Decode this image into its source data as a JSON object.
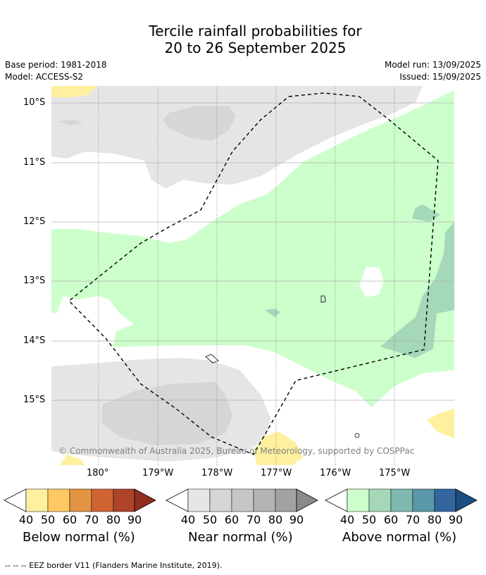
{
  "title_line1": "Tercile rainfall probabilities for",
  "title_line2": "20 to 26 September 2025",
  "base_period": "Base period: 1981-2018",
  "model": "Model: ACCESS-S2",
  "model_run": "Model run: 13/09/2025",
  "issued": "Issued: 15/09/2025",
  "lat_labels": [
    "10°S",
    "11°S",
    "12°S",
    "13°S",
    "14°S",
    "15°S"
  ],
  "lon_labels": [
    "180°",
    "179°W",
    "178°W",
    "177°W",
    "176°W",
    "175°W"
  ],
  "copyright": "© Commonwealth of Australia 2025, Bureau of Meteorology, supported by COSPPac",
  "colorbars": [
    {
      "title": "Below normal (%)",
      "ticks": [
        "40",
        "50",
        "60",
        "70",
        "80",
        "90"
      ],
      "colors": [
        "#fff0a0",
        "#fec963",
        "#e39443",
        "#cf6432",
        "#ad4429",
        "#922e1f"
      ]
    },
    {
      "title": "Near normal (%)",
      "ticks": [
        "40",
        "50",
        "60",
        "70",
        "80",
        "90"
      ],
      "colors": [
        "#e5e5e5",
        "#d6d6d6",
        "#c6c6c6",
        "#b4b4b4",
        "#a2a2a2",
        "#8a8a8a"
      ]
    },
    {
      "title": "Above normal (%)",
      "ticks": [
        "40",
        "50",
        "60",
        "70",
        "80",
        "90"
      ],
      "colors": [
        "#ccffcc",
        "#a5d8b8",
        "#7fb8b0",
        "#5a97a8",
        "#32669c",
        "#1b4f82"
      ]
    }
  ],
  "footnote": "--  --  -- EEZ border V11 (Flanders Marine Institute, 2019)."
}
